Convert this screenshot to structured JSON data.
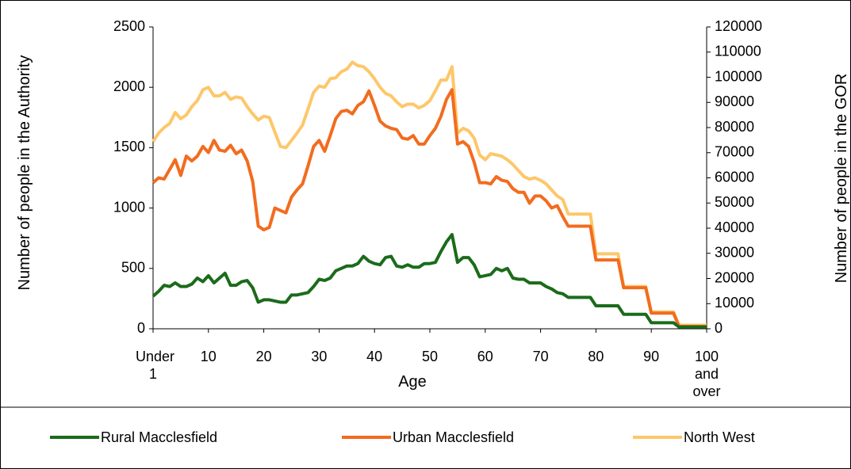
{
  "chart_data": {
    "type": "line",
    "xlabel": "Age",
    "ylabel": "Number of people in the Authority",
    "y2label": "Number of people in the GOR",
    "categories": [
      "Under 1",
      null,
      null,
      null,
      null,
      null,
      null,
      null,
      null,
      null,
      "10",
      null,
      null,
      null,
      null,
      null,
      null,
      null,
      null,
      null,
      "20",
      null,
      null,
      null,
      null,
      null,
      null,
      null,
      null,
      null,
      "30",
      null,
      null,
      null,
      null,
      null,
      null,
      null,
      null,
      null,
      "40",
      null,
      null,
      null,
      null,
      null,
      null,
      null,
      null,
      null,
      "50",
      null,
      null,
      null,
      null,
      null,
      null,
      null,
      null,
      null,
      "60",
      null,
      null,
      null,
      null,
      null,
      null,
      null,
      null,
      null,
      "70",
      null,
      null,
      null,
      null,
      null,
      null,
      null,
      null,
      null,
      "80",
      null,
      null,
      null,
      null,
      null,
      null,
      null,
      null,
      null,
      "90",
      null,
      null,
      null,
      null,
      null,
      null,
      null,
      null,
      null,
      "100 and over"
    ],
    "ylim": [
      0,
      2500
    ],
    "yticks": [
      0,
      500,
      1000,
      1500,
      2000,
      2500
    ],
    "y2lim": [
      0,
      120000
    ],
    "y2ticks": [
      0,
      10000,
      20000,
      30000,
      40000,
      50000,
      60000,
      70000,
      80000,
      90000,
      100000,
      110000,
      120000
    ],
    "legend": "bottom",
    "series": [
      {
        "name": "Rural Macclesfield",
        "color": "#1b6b1b",
        "axis": "y",
        "values": [
          270,
          310,
          360,
          350,
          380,
          350,
          350,
          370,
          420,
          390,
          440,
          380,
          420,
          460,
          360,
          360,
          390,
          400,
          340,
          220,
          240,
          240,
          230,
          220,
          220,
          280,
          280,
          290,
          300,
          350,
          410,
          400,
          420,
          480,
          500,
          520,
          520,
          540,
          600,
          560,
          540,
          530,
          590,
          600,
          520,
          510,
          530,
          510,
          510,
          540,
          540,
          550,
          640,
          720,
          780,
          550,
          590,
          590,
          530,
          430,
          440,
          450,
          500,
          480,
          500,
          420,
          410,
          410,
          380,
          380,
          380,
          350,
          330,
          300,
          290,
          260,
          260,
          260,
          260,
          260,
          190,
          190,
          190,
          190,
          190,
          120,
          120,
          120,
          120,
          120,
          50,
          50,
          50,
          50,
          50,
          15,
          15,
          15,
          15,
          15,
          15
        ]
      },
      {
        "name": "Urban Macclesfield",
        "color": "#f26c1f",
        "axis": "y",
        "values": [
          1210,
          1250,
          1240,
          1320,
          1400,
          1270,
          1430,
          1390,
          1430,
          1510,
          1460,
          1560,
          1480,
          1470,
          1520,
          1450,
          1480,
          1390,
          1220,
          850,
          820,
          840,
          1000,
          980,
          960,
          1090,
          1150,
          1200,
          1350,
          1510,
          1560,
          1470,
          1600,
          1740,
          1800,
          1810,
          1780,
          1850,
          1880,
          1970,
          1850,
          1720,
          1680,
          1660,
          1650,
          1580,
          1570,
          1600,
          1530,
          1530,
          1600,
          1660,
          1760,
          1900,
          1980,
          1530,
          1550,
          1510,
          1380,
          1210,
          1210,
          1200,
          1260,
          1230,
          1220,
          1160,
          1130,
          1130,
          1040,
          1100,
          1100,
          1060,
          1000,
          1020,
          930,
          850,
          850,
          850,
          850,
          850,
          570,
          570,
          570,
          570,
          570,
          340,
          340,
          340,
          340,
          340,
          130,
          130,
          130,
          130,
          130,
          20,
          20,
          20,
          20,
          20,
          20
        ]
      },
      {
        "name": "North West",
        "color": "#fdc76a",
        "axis": "y2",
        "values": [
          74400,
          77800,
          80000,
          81600,
          86000,
          83500,
          85000,
          88300,
          90700,
          95000,
          96000,
          92600,
          92600,
          94000,
          91200,
          92200,
          91700,
          88300,
          85400,
          83000,
          84500,
          84000,
          78200,
          72500,
          72000,
          74900,
          77800,
          81000,
          87400,
          94000,
          96500,
          96000,
          99400,
          99800,
          102200,
          103200,
          106000,
          104600,
          104200,
          102200,
          99400,
          96000,
          93600,
          92600,
          90200,
          88300,
          89300,
          89300,
          87800,
          88800,
          90700,
          94600,
          98900,
          98900,
          104200,
          77800,
          79700,
          78700,
          75800,
          69100,
          67200,
          69600,
          69100,
          68600,
          67200,
          65300,
          62900,
          60500,
          59500,
          60000,
          59000,
          57600,
          55200,
          52800,
          51400,
          45600,
          45600,
          45600,
          45600,
          45600,
          29800,
          29800,
          29800,
          29800,
          29800,
          16800,
          16800,
          16800,
          16800,
          16800,
          6700,
          6700,
          6700,
          6700,
          6700,
          1400,
          1400,
          1400,
          1400,
          1400,
          1400
        ]
      }
    ]
  }
}
